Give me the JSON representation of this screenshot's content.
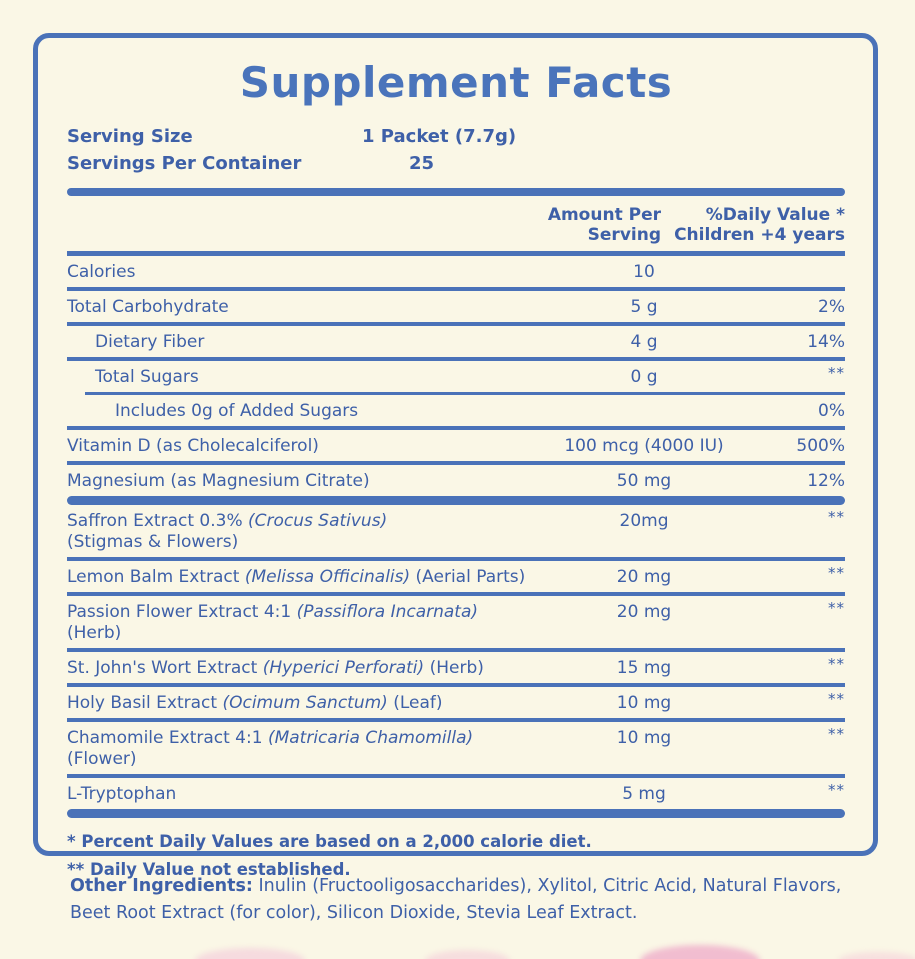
{
  "page": {
    "background": "#faf7e6",
    "accent_blue": "#4a72b8",
    "text_blue": "#3e60a8",
    "decor_pink": "#f3c5d8"
  },
  "panel": {
    "title": "Supplement Facts",
    "serving_rows": [
      {
        "label": "Serving Size",
        "value": "1 Packet (7.7g)"
      },
      {
        "label": "Servings Per Container",
        "value": "25"
      }
    ],
    "columns": {
      "amount_line1": "Amount Per",
      "amount_line2": "Serving",
      "dv_line1": "%Daily Value *",
      "dv_line2": "Children +4 years"
    },
    "rows": [
      {
        "label": [
          {
            "t": "Calories"
          }
        ],
        "amount": "10",
        "dv": "",
        "indent": 0,
        "sep": "medium"
      },
      {
        "label": [
          {
            "t": "Total Carbohydrate"
          }
        ],
        "amount": "5 g",
        "dv": "2%",
        "indent": 0,
        "sep": "medium"
      },
      {
        "label": [
          {
            "t": "Dietary Fiber"
          }
        ],
        "amount": "4 g",
        "dv": "14%",
        "indent": 1,
        "sep": "medium"
      },
      {
        "label": [
          {
            "t": "Total Sugars"
          }
        ],
        "amount": "0 g",
        "dv": "**",
        "indent": 1,
        "sep": "thin-indent"
      },
      {
        "label": [
          {
            "t": "Includes 0g of Added Sugars"
          }
        ],
        "amount": "",
        "dv": "0%",
        "indent": 2,
        "sep": "medium"
      },
      {
        "label": [
          {
            "t": "Vitamin D (as Cholecalciferol)"
          }
        ],
        "amount": "100 mcg (4000 IU)",
        "dv": "500%",
        "indent": 0,
        "sep": "medium"
      },
      {
        "label": [
          {
            "t": "Magnesium  (as Magnesium Citrate)"
          }
        ],
        "amount": "50 mg",
        "dv": "12%",
        "indent": 0,
        "sep": "thick"
      },
      {
        "label": [
          {
            "t": "Saffron Extract 0.3% "
          },
          {
            "t": "(Crocus Sativus)",
            "i": true
          }
        ],
        "label2": "(Stigmas & Flowers)",
        "amount": "20mg",
        "dv": "**",
        "indent": 0,
        "sep": "medium"
      },
      {
        "label": [
          {
            "t": "Lemon Balm Extract "
          },
          {
            "t": "(Melissa Officinalis)",
            "i": true
          },
          {
            "t": " (Aerial Parts)"
          }
        ],
        "amount": "20 mg",
        "dv": "**",
        "indent": 0,
        "sep": "medium"
      },
      {
        "label": [
          {
            "t": "Passion Flower Extract 4:1 "
          },
          {
            "t": "(Passiflora Incarnata)",
            "i": true
          },
          {
            "t": "  (Herb)"
          }
        ],
        "amount": "20 mg",
        "dv": "**",
        "indent": 0,
        "sep": "medium"
      },
      {
        "label": [
          {
            "t": "St. John's Wort Extract  "
          },
          {
            "t": "(Hyperici Perforati)",
            "i": true
          },
          {
            "t": "  (Herb)"
          }
        ],
        "amount": "15 mg",
        "dv": "**",
        "indent": 0,
        "sep": "medium"
      },
      {
        "label": [
          {
            "t": "Holy Basil Extract  "
          },
          {
            "t": "(Ocimum Sanctum)",
            "i": true
          },
          {
            "t": " (Leaf)"
          }
        ],
        "amount": "10 mg",
        "dv": "**",
        "indent": 0,
        "sep": "medium"
      },
      {
        "label": [
          {
            "t": "Chamomile Extract 4:1 "
          },
          {
            "t": "(Matricaria Chamomilla)",
            "i": true
          },
          {
            "t": " (Flower)"
          }
        ],
        "amount": "10 mg",
        "dv": "**",
        "indent": 0,
        "sep": "medium"
      },
      {
        "label": [
          {
            "t": "L-Tryptophan"
          }
        ],
        "amount": "5 mg",
        "dv": "**",
        "indent": 0,
        "sep": "thick"
      }
    ],
    "footnotes": [
      "* Percent Daily Values are based on a 2,000 calorie diet.",
      "** Daily Value not established."
    ]
  },
  "other_ingredients": {
    "label": "Other Ingredients:",
    "text": " Inulin (Fructooligosaccharides), Xylitol, Citric Acid, Natural Flavors, Beet Root Extract (for color), Silicon Dioxide, Stevia Leaf Extract."
  }
}
